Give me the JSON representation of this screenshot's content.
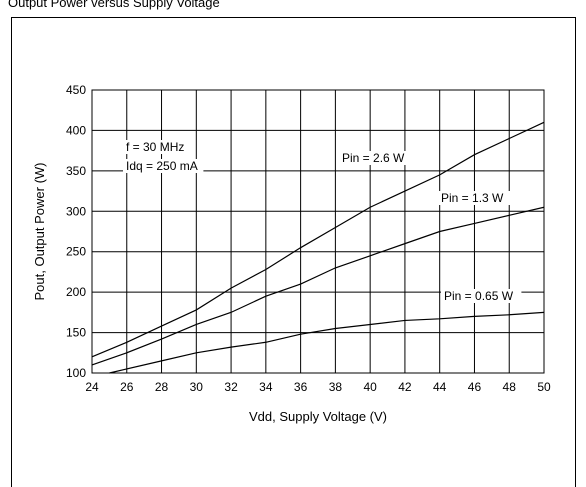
{
  "page_title": "Output Power versus Supply Voltage",
  "chart_data": {
    "type": "line",
    "title": "",
    "xlabel": "Vdd, Supply Voltage (V)",
    "ylabel": "Pout, Output Power (W)",
    "xlim": [
      24,
      50
    ],
    "ylim": [
      100,
      450
    ],
    "x_ticks": [
      24,
      26,
      28,
      30,
      32,
      34,
      36,
      38,
      40,
      42,
      44,
      46,
      48,
      50
    ],
    "y_ticks": [
      100,
      150,
      200,
      250,
      300,
      350,
      400,
      450
    ],
    "grid": true,
    "annotations": [
      "f = 30 MHz",
      "Idq = 250 mA"
    ],
    "series": [
      {
        "name": "Pin = 2.6 W",
        "x": [
          24,
          26,
          28,
          30,
          32,
          34,
          36,
          38,
          40,
          42,
          44,
          46,
          48,
          50
        ],
        "values": [
          120,
          138,
          158,
          178,
          205,
          228,
          255,
          280,
          305,
          325,
          345,
          370,
          390,
          410
        ]
      },
      {
        "name": "Pin = 1.3 W",
        "x": [
          24,
          26,
          28,
          30,
          32,
          34,
          36,
          38,
          40,
          42,
          44,
          46,
          48,
          50
        ],
        "values": [
          110,
          125,
          142,
          160,
          175,
          195,
          210,
          230,
          245,
          260,
          275,
          285,
          295,
          305
        ]
      },
      {
        "name": "Pin = 0.65 W",
        "x": [
          25,
          26,
          28,
          30,
          32,
          34,
          36,
          38,
          40,
          42,
          44,
          46,
          48,
          50
        ],
        "values": [
          100,
          105,
          115,
          125,
          132,
          138,
          148,
          155,
          160,
          165,
          167,
          170,
          172,
          175
        ]
      }
    ]
  }
}
